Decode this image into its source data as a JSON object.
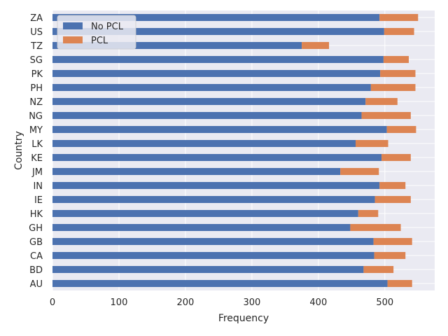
{
  "chart_data": {
    "type": "bar",
    "orientation": "horizontal",
    "stacked": true,
    "xlabel": "Frequency",
    "ylabel": "Country",
    "xlim": [
      0,
      575
    ],
    "xticks": [
      0,
      100,
      200,
      300,
      400,
      500
    ],
    "grid": true,
    "legend_position": "top-left",
    "categories": [
      "AU",
      "BD",
      "CA",
      "GB",
      "GH",
      "HK",
      "IE",
      "IN",
      "JM",
      "KE",
      "LK",
      "MY",
      "NG",
      "NZ",
      "PH",
      "PK",
      "SG",
      "TZ",
      "US",
      "ZA"
    ],
    "series": [
      {
        "name": "No PCL",
        "color": "#4c72b0",
        "values": [
          504,
          468,
          484,
          483,
          448,
          460,
          485,
          492,
          433,
          495,
          456,
          503,
          465,
          471,
          479,
          493,
          498,
          375,
          499,
          492
        ]
      },
      {
        "name": "PCL",
        "color": "#dd8452",
        "values": [
          37,
          45,
          47,
          58,
          76,
          30,
          54,
          39,
          58,
          44,
          49,
          44,
          74,
          48,
          67,
          53,
          38,
          41,
          45,
          58
        ]
      }
    ]
  }
}
